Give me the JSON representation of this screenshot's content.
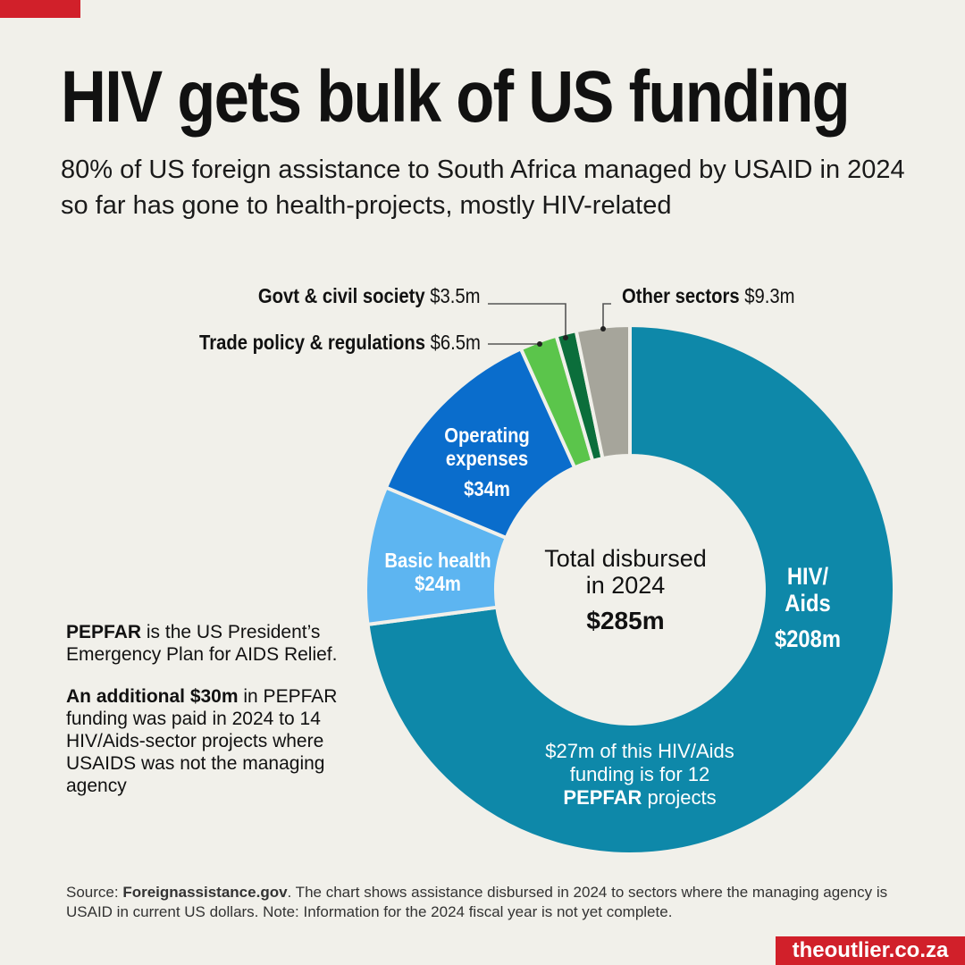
{
  "header": {
    "title": "HIV gets bulk of US funding",
    "subtitle": "80% of US foreign assistance to South Africa managed by USAID in 2024 so far has gone to health-projects, mostly HIV-related"
  },
  "chart_data": {
    "type": "pie",
    "donut": true,
    "unit": "$m",
    "center_label": "Total disbursed in 2024",
    "center_value": "$285m",
    "slices": [
      {
        "name": "HIV/ Aids",
        "label": "$208m",
        "value": 208,
        "color": "#0e88a9"
      },
      {
        "name": "Basic health",
        "label": "$24m",
        "value": 24,
        "color": "#5db5f1"
      },
      {
        "name": "Operating expenses",
        "label": "$34m",
        "value": 34,
        "color": "#0a6dcc"
      },
      {
        "name": "Trade policy & regulations",
        "label": "$6.5m",
        "value": 6.5,
        "color": "#5bc54b"
      },
      {
        "name": "Govt & civil society",
        "label": "$3.5m",
        "value": 3.5,
        "color": "#0b6e3b"
      },
      {
        "name": "Other sectors",
        "label": "$9.3m",
        "value": 9.3,
        "color": "#a6a59b"
      }
    ],
    "annotation": {
      "pre": "$27m of this HIV/Aids funding is for 12",
      "bold": "PEPFAR",
      "post": "projects"
    }
  },
  "notes": {
    "p1_bold": "PEPFAR",
    "p1_rest": " is the US President’s Emergency Plan for AIDS Relief.",
    "p2_bold": "An additional $30m",
    "p2_rest": " in PEPFAR funding was paid in 2024 to 14 HIV/Aids-sector projects where USAIDS was not the managing agency"
  },
  "footer": {
    "source_prefix": "Source: ",
    "source_bold": "Foreignassistance.gov",
    "source_rest": ". The chart shows assistance disbursed in 2024 to sectors where the managing agency is USAID in current US dollars. Note: Information for the 2024 fiscal year is not yet complete.",
    "brand": "theoutlier.co.za"
  },
  "colors": {
    "background": "#f1f0ea",
    "accent_red": "#d1202a"
  }
}
